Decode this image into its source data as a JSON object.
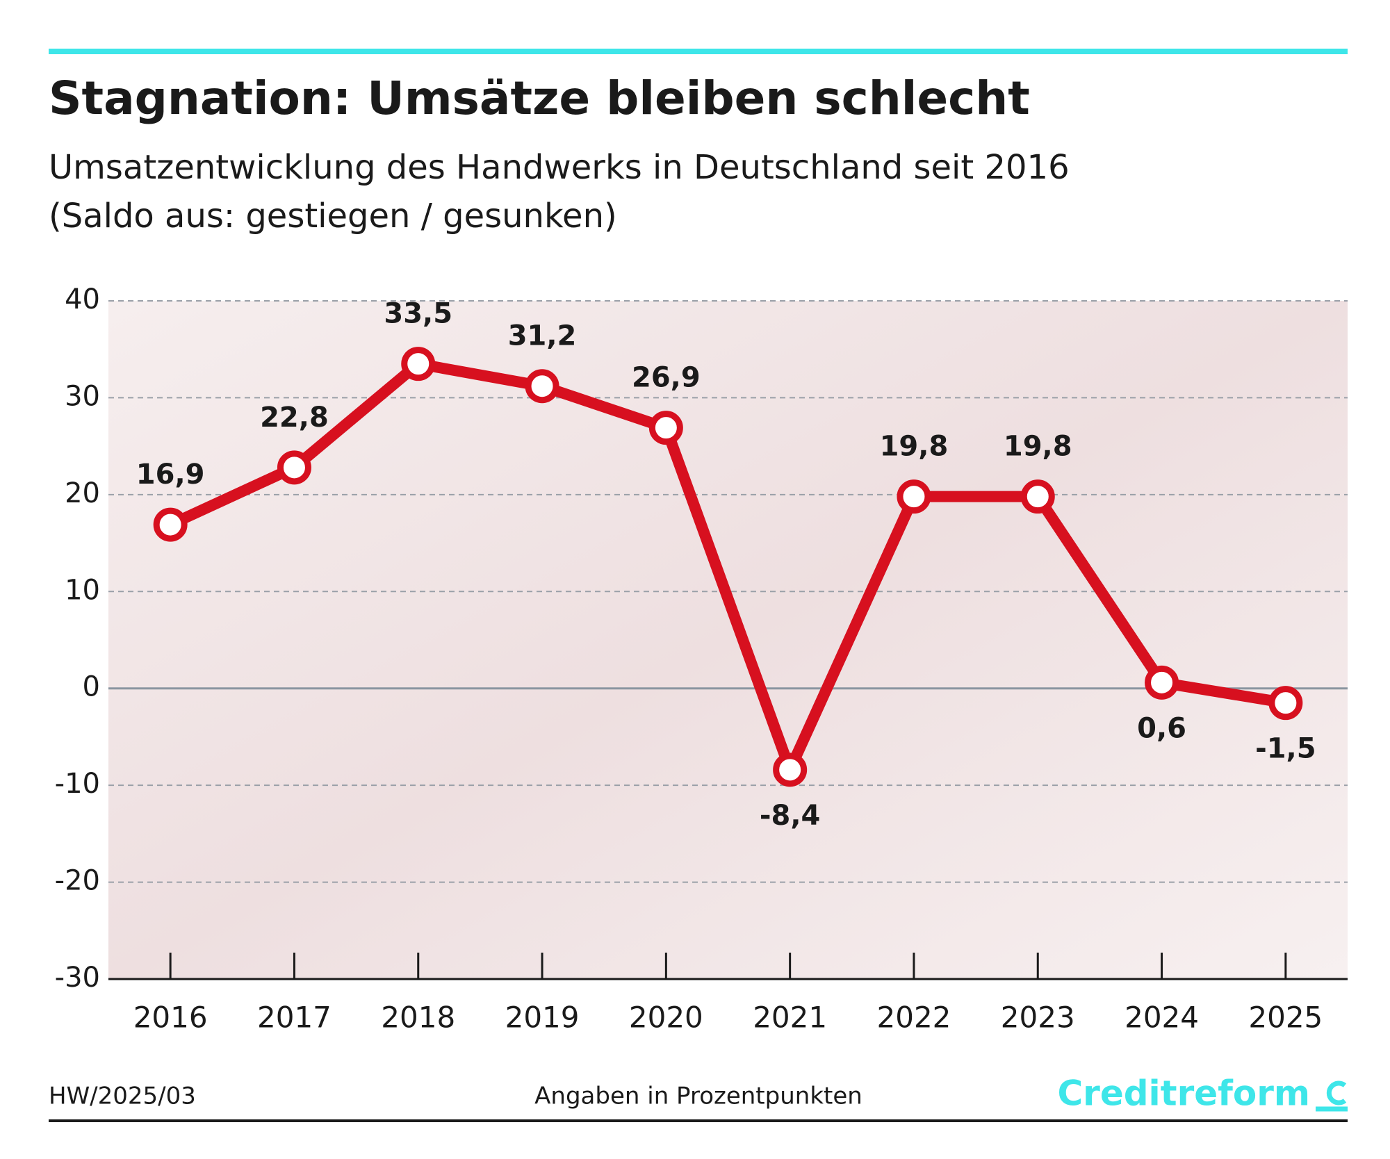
{
  "chart_data": {
    "type": "line",
    "title": "Stagnation: Umsätze bleiben schlecht",
    "subtitle": [
      "Umsatzentwicklung des Handwerks in Deutschland seit 2016",
      "(Saldo aus: gestiegen / gesunken)"
    ],
    "categories": [
      "2016",
      "2017",
      "2018",
      "2019",
      "2020",
      "2021",
      "2022",
      "2023",
      "2024",
      "2025"
    ],
    "series": [
      {
        "color": "#d7101f",
        "values": [
          16.9,
          22.8,
          33.5,
          31.2,
          26.9,
          -8.4,
          19.8,
          19.8,
          0.6,
          -1.5
        ],
        "value_labels": [
          "16,9",
          "22,8",
          "33,5",
          "31,2",
          "26,9",
          "-8,4",
          "19,8",
          "19,8",
          "0,6",
          "-1,5"
        ]
      }
    ],
    "ylim": [
      -30,
      40
    ],
    "yticks": [
      -30,
      -20,
      -10,
      0,
      10,
      20,
      30,
      40
    ],
    "grid": true,
    "source": "HW/2025/03",
    "note": "Angaben in Prozentpunkten",
    "brand": "Creditreform"
  }
}
